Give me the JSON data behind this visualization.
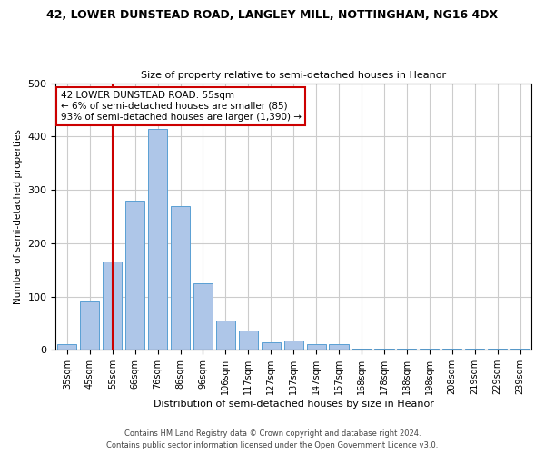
{
  "title1": "42, LOWER DUNSTEAD ROAD, LANGLEY MILL, NOTTINGHAM, NG16 4DX",
  "title2": "Size of property relative to semi-detached houses in Heanor",
  "xlabel": "Distribution of semi-detached houses by size in Heanor",
  "ylabel": "Number of semi-detached properties",
  "categories": [
    "35sqm",
    "45sqm",
    "55sqm",
    "66sqm",
    "76sqm",
    "86sqm",
    "96sqm",
    "106sqm",
    "117sqm",
    "127sqm",
    "137sqm",
    "147sqm",
    "157sqm",
    "168sqm",
    "178sqm",
    "188sqm",
    "198sqm",
    "208sqm",
    "219sqm",
    "229sqm",
    "239sqm"
  ],
  "values": [
    10,
    90,
    165,
    280,
    415,
    270,
    125,
    55,
    37,
    15,
    17,
    10,
    10,
    3,
    2,
    2,
    2,
    2,
    2,
    2,
    2
  ],
  "bar_color": "#aec6e8",
  "bar_edge_color": "#5a9fd4",
  "highlight_index": 2,
  "highlight_color": "#cc0000",
  "annotation_title": "42 LOWER DUNSTEAD ROAD: 55sqm",
  "annotation_line1": "← 6% of semi-detached houses are smaller (85)",
  "annotation_line2": "93% of semi-detached houses are larger (1,390) →",
  "annotation_box_color": "#ffffff",
  "annotation_box_edge": "#cc0000",
  "footer1": "Contains HM Land Registry data © Crown copyright and database right 2024.",
  "footer2": "Contains public sector information licensed under the Open Government Licence v3.0.",
  "ylim": [
    0,
    500
  ],
  "background_color": "#ffffff",
  "grid_color": "#cccccc"
}
